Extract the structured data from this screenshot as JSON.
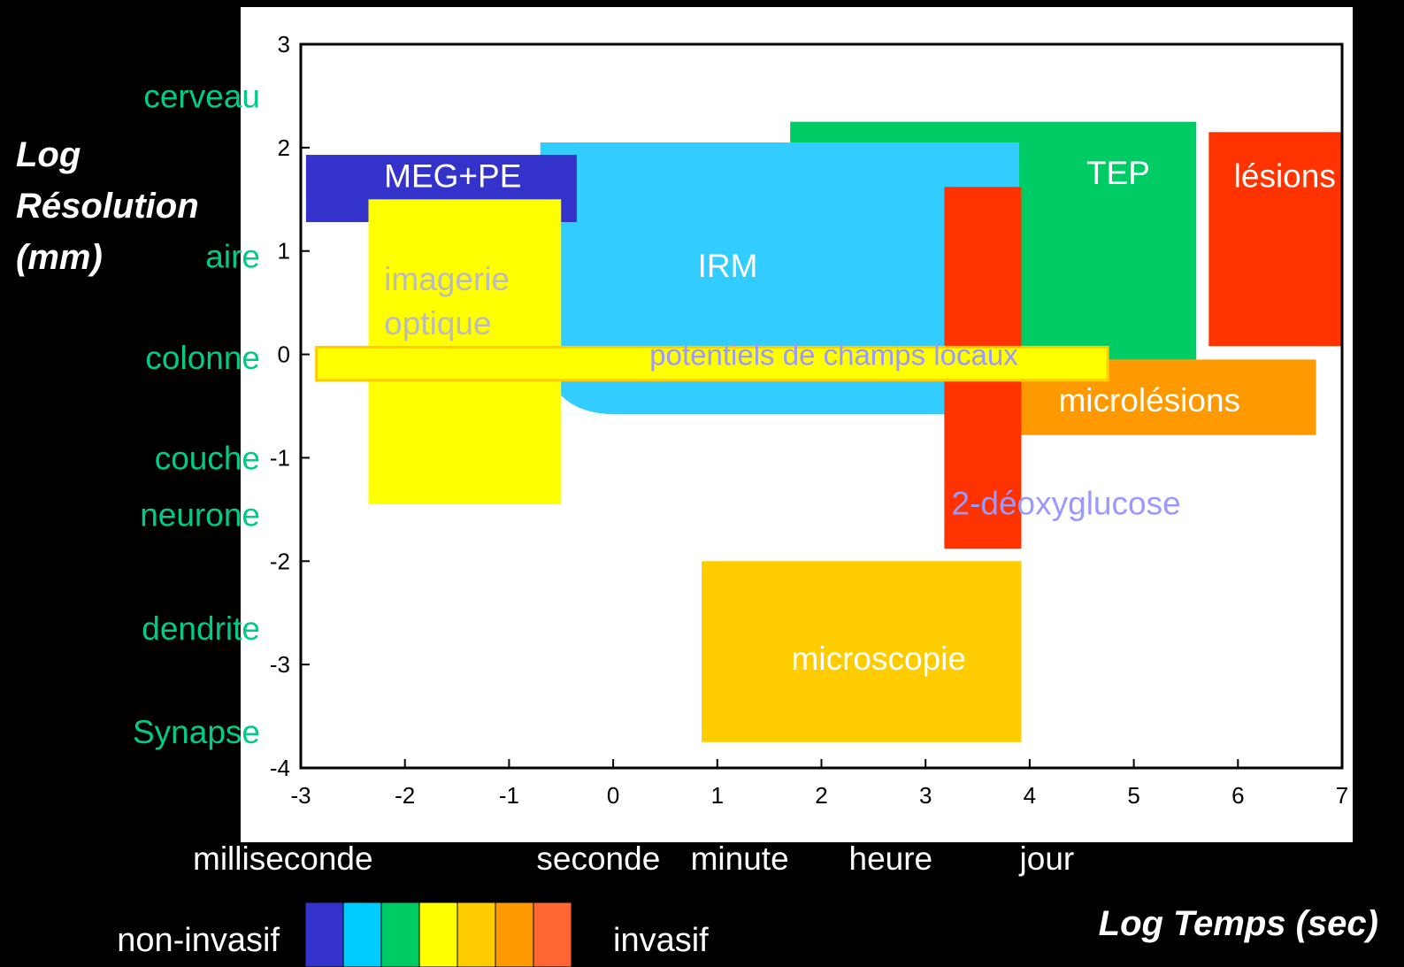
{
  "chart_data": {
    "type": "range-rectangles",
    "ylabel": [
      "Log",
      "Résolution",
      "(mm)"
    ],
    "xlabel": "Log Temps (sec)",
    "xlim": [
      -3,
      7
    ],
    "ylim": [
      -4,
      3
    ],
    "xticks": [
      -3,
      -2,
      -1,
      0,
      1,
      2,
      3,
      4,
      5,
      6,
      7
    ],
    "yticks": [
      3,
      2,
      1,
      0,
      -1,
      -2,
      -3,
      -4
    ],
    "y_scale_labels": [
      {
        "text": "cerveau",
        "y": 2.5
      },
      {
        "text": "aire",
        "y": 0.95
      },
      {
        "text": "colonne",
        "y": -0.03
      },
      {
        "text": "couche",
        "y": -1.0
      },
      {
        "text": "neurone",
        "y": -1.55
      },
      {
        "text": "dendrite",
        "y": -2.65
      },
      {
        "text": "Synapse",
        "y": -3.65
      }
    ],
    "x_scale_labels": [
      {
        "text": "milliseconde",
        "x": -3
      },
      {
        "text": "seconde",
        "x": 0.3
      },
      {
        "text": "minute",
        "x": 1.78
      },
      {
        "text": "heure",
        "x": 3.3
      },
      {
        "text": "jour",
        "x": 4.94
      }
    ],
    "techniques": [
      {
        "name": "TEP",
        "x": [
          1.7,
          5.6
        ],
        "y": [
          -0.05,
          2.25
        ],
        "color": "#00cc66",
        "label_color": "#ffffff",
        "label_at": [
          4.85,
          1.65
        ]
      },
      {
        "name": "IRM",
        "x": [
          -0.7,
          3.9
        ],
        "y": [
          -0.58,
          2.05
        ],
        "color": "#33ccff",
        "label_color": "#ffffff",
        "label_at": [
          1.1,
          0.75
        ]
      },
      {
        "name": "MEG+PE",
        "x": [
          -2.95,
          -0.35
        ],
        "y": [
          1.28,
          1.93
        ],
        "color": "#3333cc",
        "label_color": "#ffffff",
        "label_at": [
          -2.2,
          1.62
        ]
      },
      {
        "name": "lésions",
        "x": [
          5.72,
          7.0
        ],
        "y": [
          0.08,
          2.15
        ],
        "color": "#ff3300",
        "label_color": "#ffffff",
        "label_at": [
          6.45,
          1.62
        ]
      },
      {
        "name": "microlésions",
        "x": [
          3.42,
          6.75
        ],
        "y": [
          -0.78,
          -0.05
        ],
        "color": "#ff9900",
        "label_color": "#ffffff",
        "label_at": [
          5.15,
          -0.55
        ]
      },
      {
        "name": "2-déoxyglucose",
        "x": [
          3.18,
          3.92
        ],
        "y": [
          -1.88,
          1.62
        ],
        "color": "#ff3300",
        "label_color": "#9999ff",
        "label_at": [
          4.35,
          -1.55
        ]
      },
      {
        "name": "imagerie optique",
        "x": [
          -2.35,
          -0.5
        ],
        "y": [
          -1.45,
          1.5
        ],
        "color": "#ffff00",
        "label_color": "#bbbbbb",
        "label_at": [
          -2.2,
          0.62
        ]
      },
      {
        "name": "microscopie",
        "x": [
          0.85,
          3.92
        ],
        "y": [
          -3.75,
          -2.0
        ],
        "color": "#ffcc00",
        "label_color": "#ffffff",
        "label_at": [
          2.55,
          -3.05
        ]
      },
      {
        "name": "potentiels de champs locaux",
        "x": [
          -2.85,
          4.75
        ],
        "y": [
          -0.25,
          0.07
        ],
        "color": "#ffff00",
        "label_color": "#9999ff",
        "label_at": [
          0.35,
          -0.1
        ]
      }
    ]
  },
  "legend": {
    "left_label": "non-invasif",
    "right_label": "invasif",
    "swatches": [
      "#3333cc",
      "#00ccff",
      "#00cc66",
      "#ffff00",
      "#ffcc00",
      "#ff9900",
      "#ff6633"
    ]
  }
}
